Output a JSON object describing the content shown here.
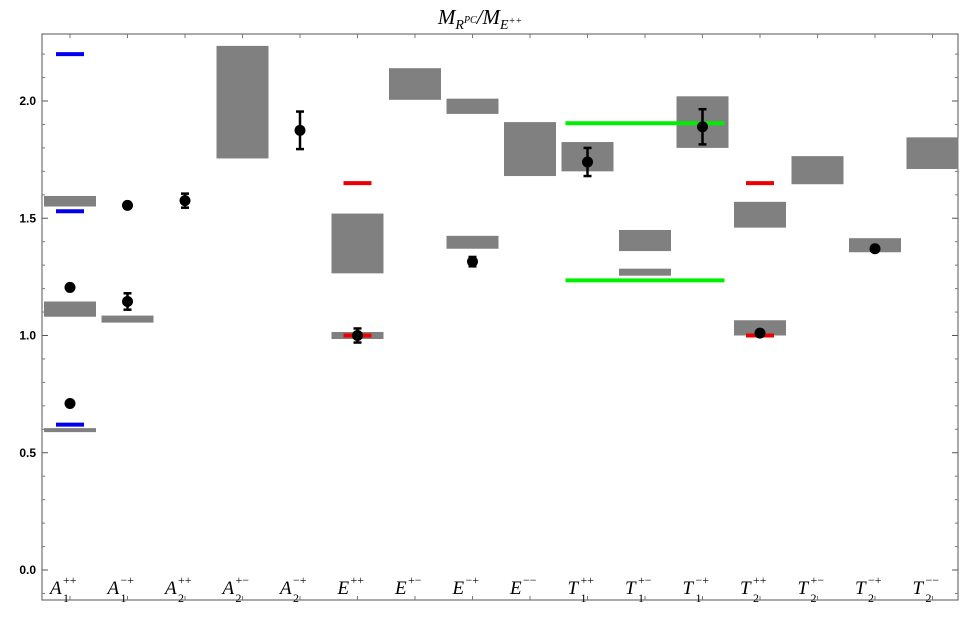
{
  "chart_data": {
    "type": "scatter",
    "title": "M_{R^{PC}}/M_{E^{++}}",
    "xlabel": "",
    "ylabel": "",
    "ylim": [
      -0.1,
      2.3
    ],
    "yticks": [
      0.0,
      0.5,
      1.0,
      1.5,
      2.0
    ],
    "ytick_labels": [
      "0.0",
      "0.5",
      "1.0",
      "1.5",
      "2.0"
    ],
    "categories": [
      {
        "base": "A",
        "sub": "1",
        "sup": "++"
      },
      {
        "base": "A",
        "sub": "1",
        "sup": "−+"
      },
      {
        "base": "A",
        "sub": "2",
        "sup": "++"
      },
      {
        "base": "A",
        "sub": "2",
        "sup": "+−"
      },
      {
        "base": "A",
        "sub": "2",
        "sup": "−+"
      },
      {
        "base": "E",
        "sub": "",
        "sup": "++"
      },
      {
        "base": "E",
        "sub": "",
        "sup": "+−"
      },
      {
        "base": "E",
        "sub": "",
        "sup": "−+"
      },
      {
        "base": "E",
        "sub": "",
        "sup": "−−"
      },
      {
        "base": "T",
        "sub": "1",
        "sup": "++"
      },
      {
        "base": "T",
        "sub": "1",
        "sup": "+−"
      },
      {
        "base": "T",
        "sub": "1",
        "sup": "−+"
      },
      {
        "base": "T",
        "sub": "2",
        "sup": "++"
      },
      {
        "base": "T",
        "sub": "2",
        "sup": "+−"
      },
      {
        "base": "T",
        "sub": "2",
        "sup": "−+"
      },
      {
        "base": "T",
        "sub": "2",
        "sup": "−−"
      }
    ],
    "grid": false,
    "series": [
      {
        "kind": "band",
        "color": "#808080",
        "values": [
          {
            "cat": 0,
            "low": 0.59,
            "high": 0.605
          },
          {
            "cat": 0,
            "low": 1.08,
            "high": 1.145
          },
          {
            "cat": 0,
            "low": 1.55,
            "high": 1.595
          },
          {
            "cat": 1,
            "low": 1.055,
            "high": 1.085
          },
          {
            "cat": 3,
            "low": 1.755,
            "high": 2.235
          },
          {
            "cat": 5,
            "low": 0.985,
            "high": 1.015
          },
          {
            "cat": 5,
            "low": 1.265,
            "high": 1.52
          },
          {
            "cat": 6,
            "low": 2.005,
            "high": 2.14
          },
          {
            "cat": 7,
            "low": 1.37,
            "high": 1.425
          },
          {
            "cat": 7,
            "low": 1.945,
            "high": 2.01
          },
          {
            "cat": 8,
            "low": 1.68,
            "high": 1.91
          },
          {
            "cat": 9,
            "low": 1.7,
            "high": 1.825
          },
          {
            "cat": 10,
            "low": 1.255,
            "high": 1.285
          },
          {
            "cat": 10,
            "low": 1.36,
            "high": 1.45
          },
          {
            "cat": 11,
            "low": 1.8,
            "high": 2.02
          },
          {
            "cat": 12,
            "low": 1.0,
            "high": 1.065
          },
          {
            "cat": 12,
            "low": 1.46,
            "high": 1.57
          },
          {
            "cat": 13,
            "low": 1.645,
            "high": 1.765
          },
          {
            "cat": 14,
            "low": 1.355,
            "high": 1.415
          },
          {
            "cat": 15,
            "low": 1.71,
            "high": 1.845
          }
        ]
      },
      {
        "kind": "points",
        "color": "#000000",
        "values": [
          {
            "cat": 0,
            "y": 0.71
          },
          {
            "cat": 0,
            "y": 1.205
          },
          {
            "cat": 1,
            "y": 1.145,
            "err": 0.035
          },
          {
            "cat": 1,
            "y": 1.555,
            "err": 0.01
          },
          {
            "cat": 2,
            "y": 1.575,
            "err": 0.03
          },
          {
            "cat": 4,
            "y": 1.875,
            "err": 0.08
          },
          {
            "cat": 5,
            "y": 1.0,
            "err": 0.03
          },
          {
            "cat": 7,
            "y": 1.315,
            "err": 0.02
          },
          {
            "cat": 9,
            "y": 1.74,
            "err": 0.06
          },
          {
            "cat": 11,
            "y": 1.89,
            "err": 0.075
          },
          {
            "cat": 12,
            "y": 1.01,
            "err": 0.01
          },
          {
            "cat": 14,
            "y": 1.37,
            "err": 0.01
          }
        ]
      },
      {
        "kind": "levels",
        "color": "#0000ee",
        "values": [
          {
            "cat_from": 0,
            "cat_to": 0,
            "y": 0.62
          },
          {
            "cat_from": 0,
            "cat_to": 0,
            "y": 1.53
          },
          {
            "cat_from": 0,
            "cat_to": 0,
            "y": 2.2
          }
        ]
      },
      {
        "kind": "levels",
        "color": "#ee0000",
        "values": [
          {
            "cat_from": 5,
            "cat_to": 5,
            "y": 1.0
          },
          {
            "cat_from": 5,
            "cat_to": 5,
            "y": 1.65
          },
          {
            "cat_from": 12,
            "cat_to": 12,
            "y": 1.0
          },
          {
            "cat_from": 12,
            "cat_to": 12,
            "y": 1.65
          }
        ]
      },
      {
        "kind": "levels",
        "color": "#00ee00",
        "values": [
          {
            "cat_from": 9,
            "cat_to": 11,
            "y": 1.235
          },
          {
            "cat_from": 9,
            "cat_to": 11,
            "y": 1.905
          }
        ]
      }
    ]
  }
}
